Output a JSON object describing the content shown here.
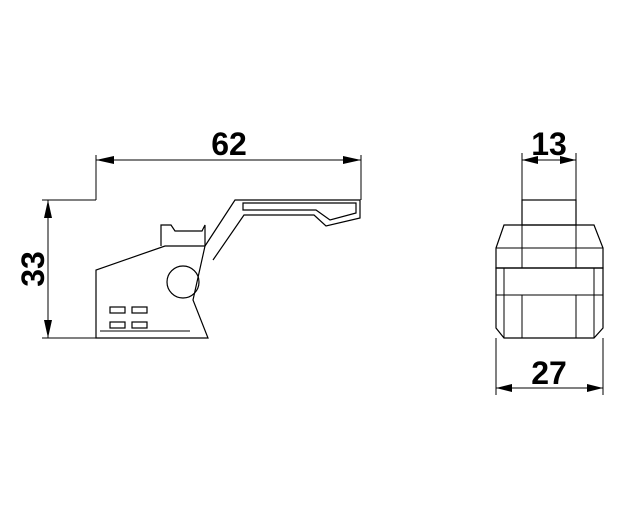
{
  "dimensions": {
    "side_width": "62",
    "side_height": "33",
    "front_top_width": "13",
    "front_bottom_width": "27"
  }
}
